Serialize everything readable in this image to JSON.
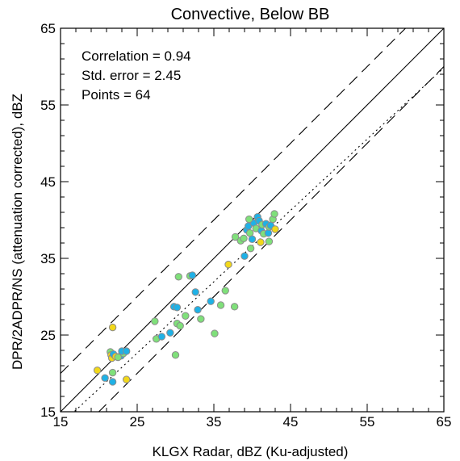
{
  "chart_data": {
    "type": "scatter",
    "title": "Convective, Below BB",
    "xlabel": "KLGX Radar, dBZ (Ku-adjusted)",
    "ylabel": "DPR/2ADPR/NS (attenuation corrected), dBZ",
    "xlim": [
      15,
      65
    ],
    "ylim": [
      15,
      65
    ],
    "xticks": [
      "15",
      "25",
      "35",
      "45",
      "55",
      "65"
    ],
    "yticks": [
      "15",
      "25",
      "35",
      "45",
      "55",
      "65"
    ],
    "stats": [
      "Correlation = 0.94",
      "Std. error = 2.45",
      "Points = 64"
    ],
    "colors": {
      "blue": "#1fb1e6",
      "green": "#7fe07a",
      "yellow": "#f2d81a",
      "edge": "#8c8c8c"
    },
    "reference_lines": {
      "one_to_one": {
        "slope": 1,
        "intercept": 0
      },
      "dashed_offsets": [
        5,
        -5
      ],
      "dotted_fit": {
        "slope": 0.93,
        "intercept": -0.6
      }
    },
    "points": [
      {
        "x": 20.8,
        "y": 19.4,
        "c": "blue"
      },
      {
        "x": 19.8,
        "y": 20.4,
        "c": "yellow"
      },
      {
        "x": 21.8,
        "y": 18.9,
        "c": "blue"
      },
      {
        "x": 21.5,
        "y": 22.8,
        "c": "green"
      },
      {
        "x": 21.6,
        "y": 22.4,
        "c": "yellow"
      },
      {
        "x": 21.7,
        "y": 22.0,
        "c": "yellow"
      },
      {
        "x": 21.9,
        "y": 22.5,
        "c": "blue"
      },
      {
        "x": 21.8,
        "y": 26.0,
        "c": "yellow"
      },
      {
        "x": 21.8,
        "y": 20.1,
        "c": "green"
      },
      {
        "x": 22.2,
        "y": 22.2,
        "c": "yellow"
      },
      {
        "x": 22.9,
        "y": 22.3,
        "c": "blue"
      },
      {
        "x": 23.2,
        "y": 22.6,
        "c": "green"
      },
      {
        "x": 23.0,
        "y": 22.9,
        "c": "blue"
      },
      {
        "x": 23.6,
        "y": 22.9,
        "c": "blue"
      },
      {
        "x": 23.6,
        "y": 19.2,
        "c": "yellow"
      },
      {
        "x": 27.3,
        "y": 26.8,
        "c": "green"
      },
      {
        "x": 27.5,
        "y": 24.5,
        "c": "green"
      },
      {
        "x": 28.2,
        "y": 24.8,
        "c": "blue"
      },
      {
        "x": 29.3,
        "y": 25.3,
        "c": "blue"
      },
      {
        "x": 29.8,
        "y": 28.7,
        "c": "blue"
      },
      {
        "x": 30.2,
        "y": 28.6,
        "c": "blue"
      },
      {
        "x": 30.2,
        "y": 26.5,
        "c": "green"
      },
      {
        "x": 30.0,
        "y": 22.4,
        "c": "green"
      },
      {
        "x": 30.4,
        "y": 32.6,
        "c": "green"
      },
      {
        "x": 30.6,
        "y": 26.2,
        "c": "green"
      },
      {
        "x": 31.3,
        "y": 27.5,
        "c": "green"
      },
      {
        "x": 31.9,
        "y": 32.7,
        "c": "green"
      },
      {
        "x": 32.2,
        "y": 32.8,
        "c": "blue"
      },
      {
        "x": 32.6,
        "y": 30.6,
        "c": "blue"
      },
      {
        "x": 32.9,
        "y": 28.3,
        "c": "blue"
      },
      {
        "x": 33.3,
        "y": 27.1,
        "c": "green"
      },
      {
        "x": 34.6,
        "y": 29.4,
        "c": "blue"
      },
      {
        "x": 35.1,
        "y": 25.2,
        "c": "green"
      },
      {
        "x": 35.9,
        "y": 28.9,
        "c": "green"
      },
      {
        "x": 36.5,
        "y": 30.8,
        "c": "green"
      },
      {
        "x": 36.9,
        "y": 34.2,
        "c": "yellow"
      },
      {
        "x": 37.7,
        "y": 28.7,
        "c": "green"
      },
      {
        "x": 38.5,
        "y": 37.3,
        "c": "green"
      },
      {
        "x": 38.9,
        "y": 37.6,
        "c": "green"
      },
      {
        "x": 39.0,
        "y": 35.3,
        "c": "blue"
      },
      {
        "x": 39.3,
        "y": 38.7,
        "c": "blue"
      },
      {
        "x": 39.5,
        "y": 39.2,
        "c": "blue"
      },
      {
        "x": 39.7,
        "y": 38.3,
        "c": "green"
      },
      {
        "x": 39.8,
        "y": 36.3,
        "c": "green"
      },
      {
        "x": 40.0,
        "y": 37.5,
        "c": "blue"
      },
      {
        "x": 40.2,
        "y": 39.6,
        "c": "blue"
      },
      {
        "x": 40.5,
        "y": 38.9,
        "c": "green"
      },
      {
        "x": 40.7,
        "y": 40.4,
        "c": "blue"
      },
      {
        "x": 40.9,
        "y": 39.9,
        "c": "blue"
      },
      {
        "x": 41.1,
        "y": 37.1,
        "c": "yellow"
      },
      {
        "x": 41.2,
        "y": 38.6,
        "c": "blue"
      },
      {
        "x": 41.3,
        "y": 39.4,
        "c": "green"
      },
      {
        "x": 41.5,
        "y": 38.2,
        "c": "green"
      },
      {
        "x": 41.8,
        "y": 39.5,
        "c": "blue"
      },
      {
        "x": 42.1,
        "y": 38.3,
        "c": "blue"
      },
      {
        "x": 42.2,
        "y": 39.1,
        "c": "green"
      },
      {
        "x": 42.2,
        "y": 37.2,
        "c": "green"
      },
      {
        "x": 42.4,
        "y": 39.3,
        "c": "blue"
      },
      {
        "x": 42.7,
        "y": 40.1,
        "c": "green"
      },
      {
        "x": 42.9,
        "y": 40.8,
        "c": "green"
      },
      {
        "x": 43.0,
        "y": 38.8,
        "c": "yellow"
      },
      {
        "x": 39.6,
        "y": 40.1,
        "c": "green"
      },
      {
        "x": 37.8,
        "y": 37.8,
        "c": "green"
      },
      {
        "x": 22.5,
        "y": 22.1,
        "c": "green"
      }
    ]
  }
}
